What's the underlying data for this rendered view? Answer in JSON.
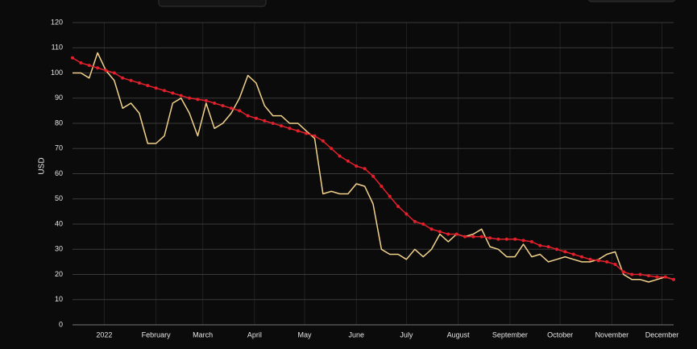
{
  "chart_data": {
    "type": "line",
    "ylabel": "USD",
    "x": [
      -19,
      -14,
      -9,
      -4,
      1,
      6,
      11,
      16,
      21,
      26,
      31,
      36,
      41,
      46,
      51,
      56,
      61,
      66,
      71,
      76,
      81,
      86,
      91,
      96,
      101,
      106,
      111,
      116,
      121,
      126,
      131,
      136,
      141,
      146,
      151,
      156,
      161,
      166,
      171,
      176,
      181,
      186,
      191,
      196,
      201,
      206,
      211,
      216,
      221,
      226,
      231,
      236,
      241,
      246,
      251,
      256,
      261,
      266,
      271,
      276,
      281,
      286,
      291,
      296,
      301,
      306,
      311,
      316,
      321,
      326,
      331,
      336,
      341
    ],
    "series": [
      {
        "color": "#f2d28a",
        "values": [
          100,
          100,
          98,
          108,
          101,
          97,
          86,
          88,
          84,
          72,
          72,
          75,
          88,
          90,
          84,
          75,
          88,
          78,
          80,
          84,
          90,
          99,
          96,
          87,
          83,
          83,
          80,
          80,
          77,
          74,
          52,
          53,
          52,
          52,
          56,
          55,
          48,
          30,
          28,
          28,
          26,
          30,
          27,
          30,
          36,
          33,
          36,
          35,
          36,
          38,
          31,
          30,
          27,
          27,
          32,
          27,
          28,
          25,
          26,
          27,
          26,
          25,
          25,
          26,
          28,
          29,
          20,
          18,
          18,
          17,
          18,
          19,
          18
        ]
      },
      {
        "color": "#e3202b",
        "markers": true,
        "values": [
          106,
          104,
          103,
          102,
          101,
          100,
          98,
          97,
          96,
          95,
          94,
          93,
          92,
          91,
          90,
          89.5,
          89,
          88,
          87,
          86,
          85,
          83,
          82,
          81,
          80,
          79,
          78,
          77,
          76,
          75,
          73,
          70,
          67,
          65,
          63,
          62,
          59,
          55,
          51,
          47,
          44,
          41,
          40,
          38,
          37,
          36,
          36,
          35,
          35,
          35,
          34.5,
          34,
          34,
          34,
          33.5,
          33,
          31.5,
          31,
          30,
          29,
          28,
          27,
          26,
          25.5,
          25,
          24,
          21,
          20,
          20,
          19.5,
          19,
          19,
          18
        ]
      }
    ],
    "xlim": [
      -19,
      341
    ],
    "xticks": [
      {
        "value": 0,
        "label": "2022"
      },
      {
        "value": 31,
        "label": "February"
      },
      {
        "value": 59,
        "label": "March"
      },
      {
        "value": 90,
        "label": "April"
      },
      {
        "value": 120,
        "label": "May"
      },
      {
        "value": 151,
        "label": "June"
      },
      {
        "value": 181,
        "label": "July"
      },
      {
        "value": 212,
        "label": "August"
      },
      {
        "value": 243,
        "label": "September"
      },
      {
        "value": 273,
        "label": "October"
      },
      {
        "value": 304,
        "label": "November"
      },
      {
        "value": 334,
        "label": "December"
      }
    ],
    "ylim": [
      0,
      120
    ],
    "yticks": [
      0,
      10,
      20,
      30,
      40,
      50,
      60,
      70,
      80,
      90,
      100,
      110,
      120
    ],
    "grid": true
  }
}
